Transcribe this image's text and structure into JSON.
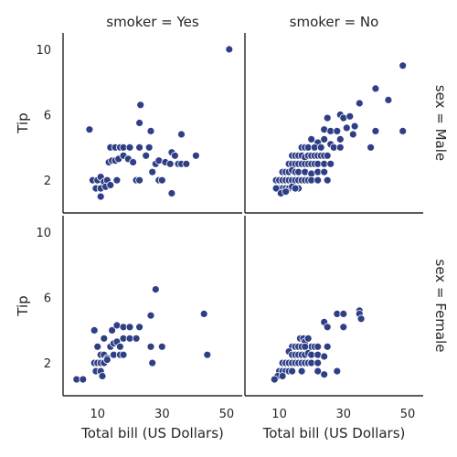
{
  "chart_data": {
    "type": "scatter",
    "xlabel": "Total bill (US Dollars)",
    "ylabel": "Tip",
    "xlim": [
      3,
      52
    ],
    "ylim": [
      0.5,
      10.5
    ],
    "xticks": [
      10,
      30,
      50
    ],
    "yticks": [
      2,
      6,
      10
    ],
    "marker_color": "#2f3f86",
    "grid": false,
    "legend": "none",
    "col_titles": [
      "smoker = Yes",
      "smoker = No"
    ],
    "row_titles": [
      "sex = Male",
      "sex = Female"
    ],
    "panels": [
      {
        "row": "sex = Male",
        "col": "smoker = Yes",
        "points": [
          [
            50.8,
            10.0
          ],
          [
            7.5,
            5.1
          ],
          [
            23.3,
            6.6
          ],
          [
            23.0,
            5.5
          ],
          [
            26.5,
            5.0
          ],
          [
            36.0,
            4.8
          ],
          [
            14.0,
            4.0
          ],
          [
            15.5,
            4.0
          ],
          [
            17.0,
            4.0
          ],
          [
            18.0,
            4.0
          ],
          [
            20.0,
            4.0
          ],
          [
            23.0,
            4.0
          ],
          [
            26.0,
            4.0
          ],
          [
            13.5,
            3.1
          ],
          [
            14.5,
            3.2
          ],
          [
            15.5,
            3.2
          ],
          [
            16.5,
            3.3
          ],
          [
            18.0,
            3.5
          ],
          [
            19.5,
            3.3
          ],
          [
            21.0,
            3.1
          ],
          [
            25.0,
            3.5
          ],
          [
            28.0,
            3.0
          ],
          [
            29.0,
            3.2
          ],
          [
            31.0,
            3.1
          ],
          [
            32.5,
            3.0
          ],
          [
            33.0,
            3.7
          ],
          [
            34.0,
            3.5
          ],
          [
            35.0,
            3.0
          ],
          [
            36.0,
            3.0
          ],
          [
            37.5,
            3.0
          ],
          [
            40.5,
            3.5
          ],
          [
            8.5,
            2.0
          ],
          [
            10.0,
            2.0
          ],
          [
            11.0,
            2.2
          ],
          [
            12.0,
            1.9
          ],
          [
            13.0,
            2.0
          ],
          [
            9.5,
            1.5
          ],
          [
            11.0,
            1.5
          ],
          [
            12.5,
            1.6
          ],
          [
            14.0,
            1.7
          ],
          [
            16.0,
            2.0
          ],
          [
            22.0,
            2.0
          ],
          [
            23.0,
            2.0
          ],
          [
            27.0,
            2.5
          ],
          [
            29.0,
            2.0
          ],
          [
            30.0,
            2.0
          ],
          [
            11.0,
            1.0
          ],
          [
            33.0,
            1.2
          ]
        ]
      },
      {
        "row": "sex = Male",
        "col": "smoker = No",
        "points": [
          [
            48.5,
            9.0
          ],
          [
            40.0,
            7.6
          ],
          [
            35.0,
            6.7
          ],
          [
            44.0,
            6.9
          ],
          [
            29.0,
            6.0
          ],
          [
            30.0,
            5.8
          ],
          [
            32.0,
            5.9
          ],
          [
            25.0,
            5.8
          ],
          [
            40.0,
            5.0
          ],
          [
            48.5,
            5.0
          ],
          [
            38.5,
            4.0
          ],
          [
            24.0,
            5.1
          ],
          [
            26.0,
            5.0
          ],
          [
            28.0,
            5.0
          ],
          [
            31.0,
            5.2
          ],
          [
            33.5,
            5.3
          ],
          [
            33.0,
            4.8
          ],
          [
            20.0,
            4.5
          ],
          [
            22.0,
            4.3
          ],
          [
            24.0,
            4.5
          ],
          [
            26.0,
            4.2
          ],
          [
            29.0,
            4.5
          ],
          [
            17.0,
            4.0
          ],
          [
            18.0,
            4.0
          ],
          [
            19.0,
            4.0
          ],
          [
            21.0,
            4.0
          ],
          [
            23.0,
            4.0
          ],
          [
            27.0,
            4.0
          ],
          [
            29.0,
            4.0
          ],
          [
            14.0,
            3.5
          ],
          [
            15.0,
            3.5
          ],
          [
            16.0,
            3.5
          ],
          [
            17.0,
            3.5
          ],
          [
            18.0,
            3.4
          ],
          [
            19.0,
            3.5
          ],
          [
            20.0,
            3.5
          ],
          [
            21.0,
            3.5
          ],
          [
            22.0,
            3.5
          ],
          [
            23.0,
            3.5
          ],
          [
            24.0,
            3.5
          ],
          [
            25.0,
            3.5
          ],
          [
            13.0,
            3.0
          ],
          [
            14.0,
            3.0
          ],
          [
            15.0,
            3.0
          ],
          [
            16.0,
            3.0
          ],
          [
            17.0,
            3.0
          ],
          [
            18.0,
            3.0
          ],
          [
            19.0,
            3.0
          ],
          [
            20.0,
            3.0
          ],
          [
            21.0,
            3.0
          ],
          [
            22.0,
            3.0
          ],
          [
            24.0,
            3.0
          ],
          [
            26.0,
            3.0
          ],
          [
            11.0,
            2.5
          ],
          [
            12.0,
            2.5
          ],
          [
            13.0,
            2.5
          ],
          [
            14.0,
            2.6
          ],
          [
            15.0,
            2.5
          ],
          [
            16.0,
            2.5
          ],
          [
            18.0,
            2.5
          ],
          [
            20.0,
            2.4
          ],
          [
            22.0,
            2.5
          ],
          [
            24.0,
            2.5
          ],
          [
            9.0,
            2.0
          ],
          [
            10.0,
            2.0
          ],
          [
            11.0,
            2.0
          ],
          [
            12.0,
            2.0
          ],
          [
            13.0,
            2.0
          ],
          [
            14.0,
            2.0
          ],
          [
            15.0,
            2.0
          ],
          [
            16.0,
            2.0
          ],
          [
            17.0,
            2.0
          ],
          [
            18.0,
            2.0
          ],
          [
            19.0,
            2.0
          ],
          [
            20.0,
            2.0
          ],
          [
            22.0,
            2.0
          ],
          [
            25.0,
            2.0
          ],
          [
            10.0,
            1.5
          ],
          [
            11.0,
            1.5
          ],
          [
            12.0,
            1.5
          ],
          [
            13.0,
            1.5
          ],
          [
            14.0,
            1.6
          ],
          [
            16.0,
            1.5
          ],
          [
            9.0,
            1.5
          ],
          [
            10.5,
            1.2
          ],
          [
            12.0,
            1.3
          ],
          [
            15.0,
            1.5
          ]
        ]
      },
      {
        "row": "sex = Female",
        "col": "smoker = Yes",
        "points": [
          [
            28.0,
            6.5
          ],
          [
            43.0,
            5.0
          ],
          [
            26.5,
            4.9
          ],
          [
            9.0,
            4.0
          ],
          [
            14.5,
            4.0
          ],
          [
            16.0,
            4.3
          ],
          [
            18.0,
            4.2
          ],
          [
            20.0,
            4.2
          ],
          [
            23.0,
            4.2
          ],
          [
            44.0,
            2.5
          ],
          [
            10.0,
            3.0
          ],
          [
            12.0,
            3.5
          ],
          [
            14.0,
            3.0
          ],
          [
            15.0,
            3.2
          ],
          [
            16.0,
            3.3
          ],
          [
            17.0,
            3.0
          ],
          [
            18.0,
            3.5
          ],
          [
            20.0,
            3.5
          ],
          [
            22.0,
            3.5
          ],
          [
            26.5,
            3.0
          ],
          [
            30.0,
            3.0
          ],
          [
            11.0,
            2.5
          ],
          [
            12.0,
            2.5
          ],
          [
            13.0,
            2.3
          ],
          [
            15.0,
            2.5
          ],
          [
            17.0,
            2.5
          ],
          [
            18.0,
            2.5
          ],
          [
            9.0,
            2.0
          ],
          [
            10.0,
            2.0
          ],
          [
            11.0,
            2.0
          ],
          [
            12.0,
            2.0
          ],
          [
            13.0,
            2.2
          ],
          [
            27.0,
            2.0
          ],
          [
            9.5,
            1.5
          ],
          [
            11.0,
            1.5
          ],
          [
            11.5,
            1.2
          ],
          [
            3.5,
            1.0
          ],
          [
            5.5,
            1.0
          ]
        ]
      },
      {
        "row": "sex = Female",
        "col": "smoker = No",
        "points": [
          [
            35.0,
            5.2
          ],
          [
            35.0,
            5.0
          ],
          [
            35.5,
            4.7
          ],
          [
            28.0,
            5.0
          ],
          [
            30.0,
            5.0
          ],
          [
            24.0,
            4.5
          ],
          [
            25.0,
            4.2
          ],
          [
            30.0,
            4.2
          ],
          [
            16.5,
            3.5
          ],
          [
            17.5,
            3.5
          ],
          [
            18.0,
            3.3
          ],
          [
            19.0,
            3.5
          ],
          [
            20.0,
            3.0
          ],
          [
            21.0,
            3.0
          ],
          [
            22.0,
            3.0
          ],
          [
            14.0,
            3.0
          ],
          [
            15.0,
            3.0
          ],
          [
            16.0,
            3.0
          ],
          [
            17.0,
            3.0
          ],
          [
            18.0,
            3.0
          ],
          [
            25.0,
            3.0
          ],
          [
            13.0,
            2.7
          ],
          [
            14.0,
            2.5
          ],
          [
            15.0,
            2.5
          ],
          [
            16.0,
            2.5
          ],
          [
            17.0,
            2.5
          ],
          [
            18.0,
            2.5
          ],
          [
            19.0,
            2.6
          ],
          [
            20.0,
            2.5
          ],
          [
            22.0,
            2.5
          ],
          [
            24.0,
            2.4
          ],
          [
            11.0,
            2.0
          ],
          [
            12.0,
            2.0
          ],
          [
            13.0,
            2.0
          ],
          [
            14.0,
            2.0
          ],
          [
            15.0,
            2.0
          ],
          [
            16.0,
            2.0
          ],
          [
            17.0,
            2.0
          ],
          [
            18.0,
            2.0
          ],
          [
            19.0,
            2.0
          ],
          [
            20.0,
            2.0
          ],
          [
            22.0,
            2.0
          ],
          [
            10.0,
            1.5
          ],
          [
            11.0,
            1.5
          ],
          [
            12.0,
            1.5
          ],
          [
            13.0,
            1.5
          ],
          [
            14.0,
            1.5
          ],
          [
            17.0,
            1.5
          ],
          [
            9.5,
            1.2
          ],
          [
            11.0,
            1.2
          ],
          [
            22.0,
            1.5
          ],
          [
            24.0,
            1.3
          ],
          [
            28.0,
            1.5
          ],
          [
            8.5,
            1.0
          ]
        ]
      }
    ]
  }
}
